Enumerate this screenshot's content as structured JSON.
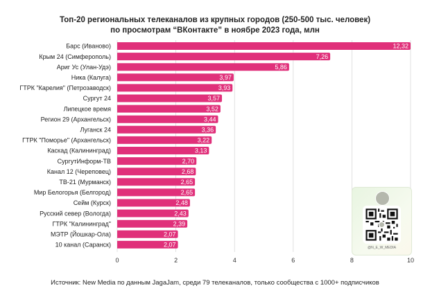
{
  "title_line1": "Топ-20 региональных телеканалов из крупных городов (250-500 тыс. человек)",
  "title_line2": "по просмотрам “ВКонтакте” в ноябре 2023 года, млн",
  "source": "Источник: New Media по данным JagaJam, среди 79 телеканалов, только сообщества с 1000+ подписчиков",
  "qr_handle": "@N_E_W_MEDIA",
  "colors": {
    "bar": "#e0307a",
    "grid": "#d9d9d9",
    "axis_text": "#333333"
  },
  "chart_data": {
    "type": "bar",
    "orientation": "horizontal",
    "categories": [
      "Барс (Иваново)",
      "Крым 24 (Симферополь)",
      "Ариг Ус (Улан-Удэ)",
      "Ника (Калуга)",
      "ГТРК \"Карелия\" (Петрозаводск)",
      "Сургут 24",
      "Липецкое время",
      "Регион 29 (Архангельск)",
      "Луганск 24",
      "ГТРК \"Поморье\" (Архангельск)",
      "Каскад (Калининград)",
      "СургутИнформ-ТВ",
      "Канал 12 (Череповец)",
      "ТВ-21 (Мурманск)",
      "Мир Белогорья (Белгород)",
      "Сейм (Курск)",
      "Русский север (Вологда)",
      "ГТРК \"Калининград\"",
      "МЭТР (Йошкар-Ола)",
      "10 канал (Саранск)"
    ],
    "values": [
      12.32,
      7.26,
      5.86,
      3.97,
      3.93,
      3.57,
      3.52,
      3.44,
      3.36,
      3.22,
      3.13,
      2.7,
      2.68,
      2.65,
      2.65,
      2.48,
      2.43,
      2.39,
      2.07,
      2.07
    ],
    "value_labels": [
      "12,32",
      "7,26",
      "5,86",
      "3,97",
      "3,93",
      "3,57",
      "3,52",
      "3,44",
      "3,36",
      "3,22",
      "3,13",
      "2,70",
      "2,68",
      "2,65",
      "2,65",
      "2,48",
      "2,43",
      "2,39",
      "2,07",
      "2,07"
    ],
    "xlim": [
      0,
      10
    ],
    "xticks": [
      0,
      2,
      4,
      6,
      8,
      10
    ],
    "grid": true,
    "bar_clipped_beyond_axis": true
  }
}
